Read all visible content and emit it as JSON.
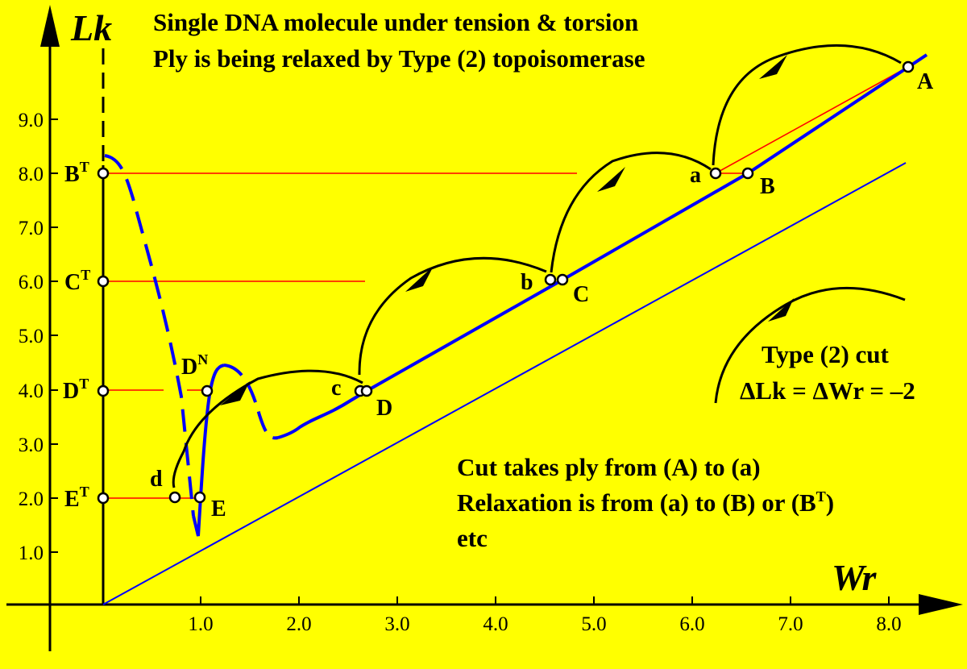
{
  "title_lines": [
    "Single DNA molecule under tension & torsion",
    "Ply is being relaxed by Type (2) topoisomerase"
  ],
  "axes": {
    "x_label": "Wr",
    "y_label": "Lk",
    "x_ticks": [
      "1.0",
      "2.0",
      "3.0",
      "4.0",
      "5.0",
      "6.0",
      "7.0",
      "8.0"
    ],
    "y_ticks": [
      "1.0",
      "2.0",
      "3.0",
      "4.0",
      "5.0",
      "6.0",
      "7.0",
      "8.0",
      "9.0"
    ]
  },
  "points": {
    "A": "A",
    "B": "B",
    "C": "C",
    "D": "D",
    "E": "E",
    "a": "a",
    "b": "b",
    "c": "c",
    "d": "d",
    "BT": "B",
    "CT": "C",
    "DT": "D",
    "ET": "E",
    "DN": "D",
    "sup_T": "T",
    "sup_N": "N"
  },
  "legend": {
    "line1": "Type (2) cut",
    "line2_prefix": "ΔLk = ΔWr = –2"
  },
  "notes": {
    "line1": "Cut takes ply from (A) to (a)",
    "line2": "Relaxation is from (a) to (B) or (B",
    "line2_sup": "T",
    "line2_end": ")",
    "line3": "etc"
  },
  "colors": {
    "background": "#FFFF00",
    "curve": "#0000FF",
    "levels": "#FF0000",
    "ink": "#000000"
  }
}
